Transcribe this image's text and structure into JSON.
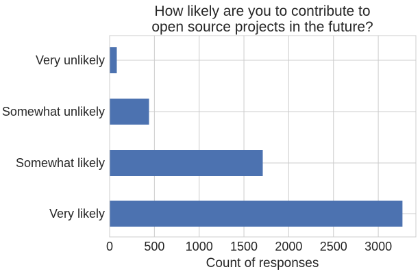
{
  "chart_data": {
    "type": "bar",
    "orientation": "horizontal",
    "title": "How likely are you to contribute to\nopen source projects in the future?",
    "xlabel": "Count of responses",
    "ylabel": "",
    "categories": [
      "Very unlikely",
      "Somewhat unlikely",
      "Somewhat likely",
      "Very likely"
    ],
    "values": [
      80,
      440,
      1710,
      3270
    ],
    "xlim": [
      0,
      3420
    ],
    "xticks": [
      "0",
      "500",
      "1000",
      "1500",
      "2000",
      "2500",
      "3000"
    ],
    "grid": true,
    "legend": false,
    "bar_color": "#4c72b0"
  }
}
